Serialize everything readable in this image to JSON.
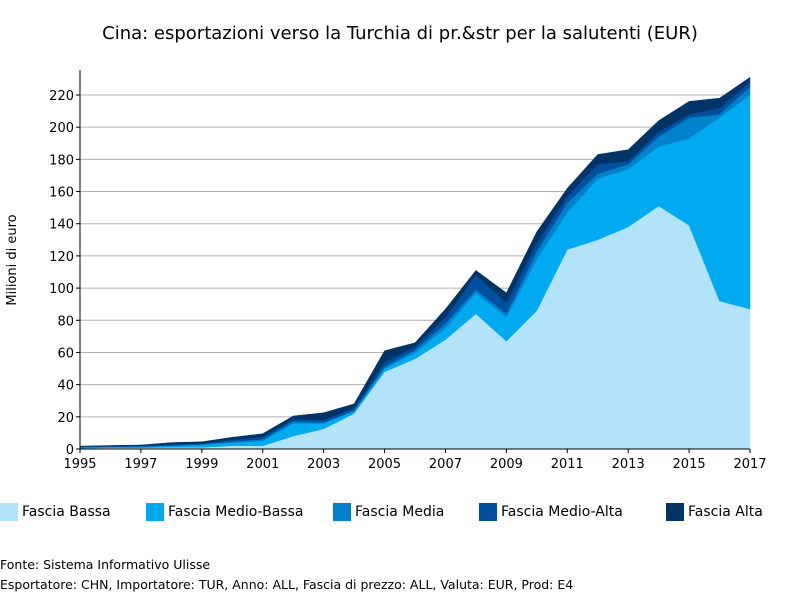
{
  "chart_data": {
    "type": "area",
    "stacked": true,
    "title": "Cina: esportazioni verso la Turchia di pr.&str per la salutenti (EUR)",
    "ylabel": "Milioni di euro",
    "xlabel": "",
    "x": [
      1995,
      1996,
      1997,
      1998,
      1999,
      2000,
      2001,
      2002,
      2003,
      2004,
      2005,
      2006,
      2007,
      2008,
      2009,
      2010,
      2011,
      2012,
      2013,
      2014,
      2015,
      2016,
      2017
    ],
    "xticks": [
      1995,
      1997,
      1999,
      2001,
      2003,
      2005,
      2007,
      2009,
      2011,
      2013,
      2015,
      2017
    ],
    "yticks": [
      0,
      20,
      40,
      60,
      80,
      100,
      120,
      140,
      160,
      180,
      200,
      220
    ],
    "xlim": [
      1995,
      2017
    ],
    "ylim": [
      0,
      235
    ],
    "grid": true,
    "legend_position": "bottom",
    "series": [
      {
        "name": "Fascia Bassa",
        "color": "#b3e3f9",
        "values": [
          0.5,
          0.8,
          0.8,
          1.0,
          1.0,
          2.0,
          2.0,
          8.0,
          12.5,
          22.0,
          48.0,
          56.0,
          68.0,
          84.0,
          67.0,
          86.0,
          124.0,
          130.0,
          138.0,
          151.0,
          139.0,
          92.0,
          87.0
        ]
      },
      {
        "name": "Fascia Medio-Bassa",
        "color": "#00aaf0",
        "values": [
          0.5,
          0.5,
          0.5,
          0.8,
          1.5,
          2.0,
          3.0,
          8.0,
          3.5,
          1.5,
          2.0,
          4.0,
          7.0,
          13.0,
          15.0,
          32.0,
          23.0,
          38.0,
          36.0,
          37.0,
          54.0,
          114.0,
          133.0
        ]
      },
      {
        "name": "Fascia Media",
        "color": "#0082ca",
        "values": [
          0.2,
          0.2,
          0.3,
          0.5,
          0.5,
          0.8,
          1.0,
          1.0,
          0.5,
          0.5,
          1.0,
          1.5,
          3.0,
          2.0,
          2.0,
          5.0,
          6.0,
          3.0,
          3.0,
          6.0,
          13.0,
          2.0,
          5.0
        ]
      },
      {
        "name": "Fascia Medio-Alta",
        "color": "#0050a0",
        "values": [
          0.3,
          0.3,
          0.4,
          0.7,
          0.5,
          1.0,
          1.5,
          1.5,
          1.5,
          1.5,
          3.0,
          2.0,
          4.0,
          9.0,
          7.0,
          5.0,
          4.0,
          6.0,
          2.0,
          3.0,
          2.0,
          4.0,
          3.0
        ]
      },
      {
        "name": "Fascia Alta",
        "color": "#003366",
        "values": [
          0.3,
          0.4,
          0.5,
          1.0,
          1.0,
          1.5,
          2.0,
          2.0,
          4.5,
          2.5,
          7.0,
          2.5,
          5.0,
          3.0,
          6.0,
          7.0,
          5.0,
          6.0,
          7.0,
          7.0,
          8.0,
          6.0,
          3.0
        ]
      }
    ]
  },
  "footer": {
    "source": "Fonte: Sistema Informativo Ulisse",
    "params": "Esportatore: CHN, Importatore: TUR, Anno: ALL, Fascia di prezzo: ALL, Valuta: EUR, Prod: E4"
  }
}
